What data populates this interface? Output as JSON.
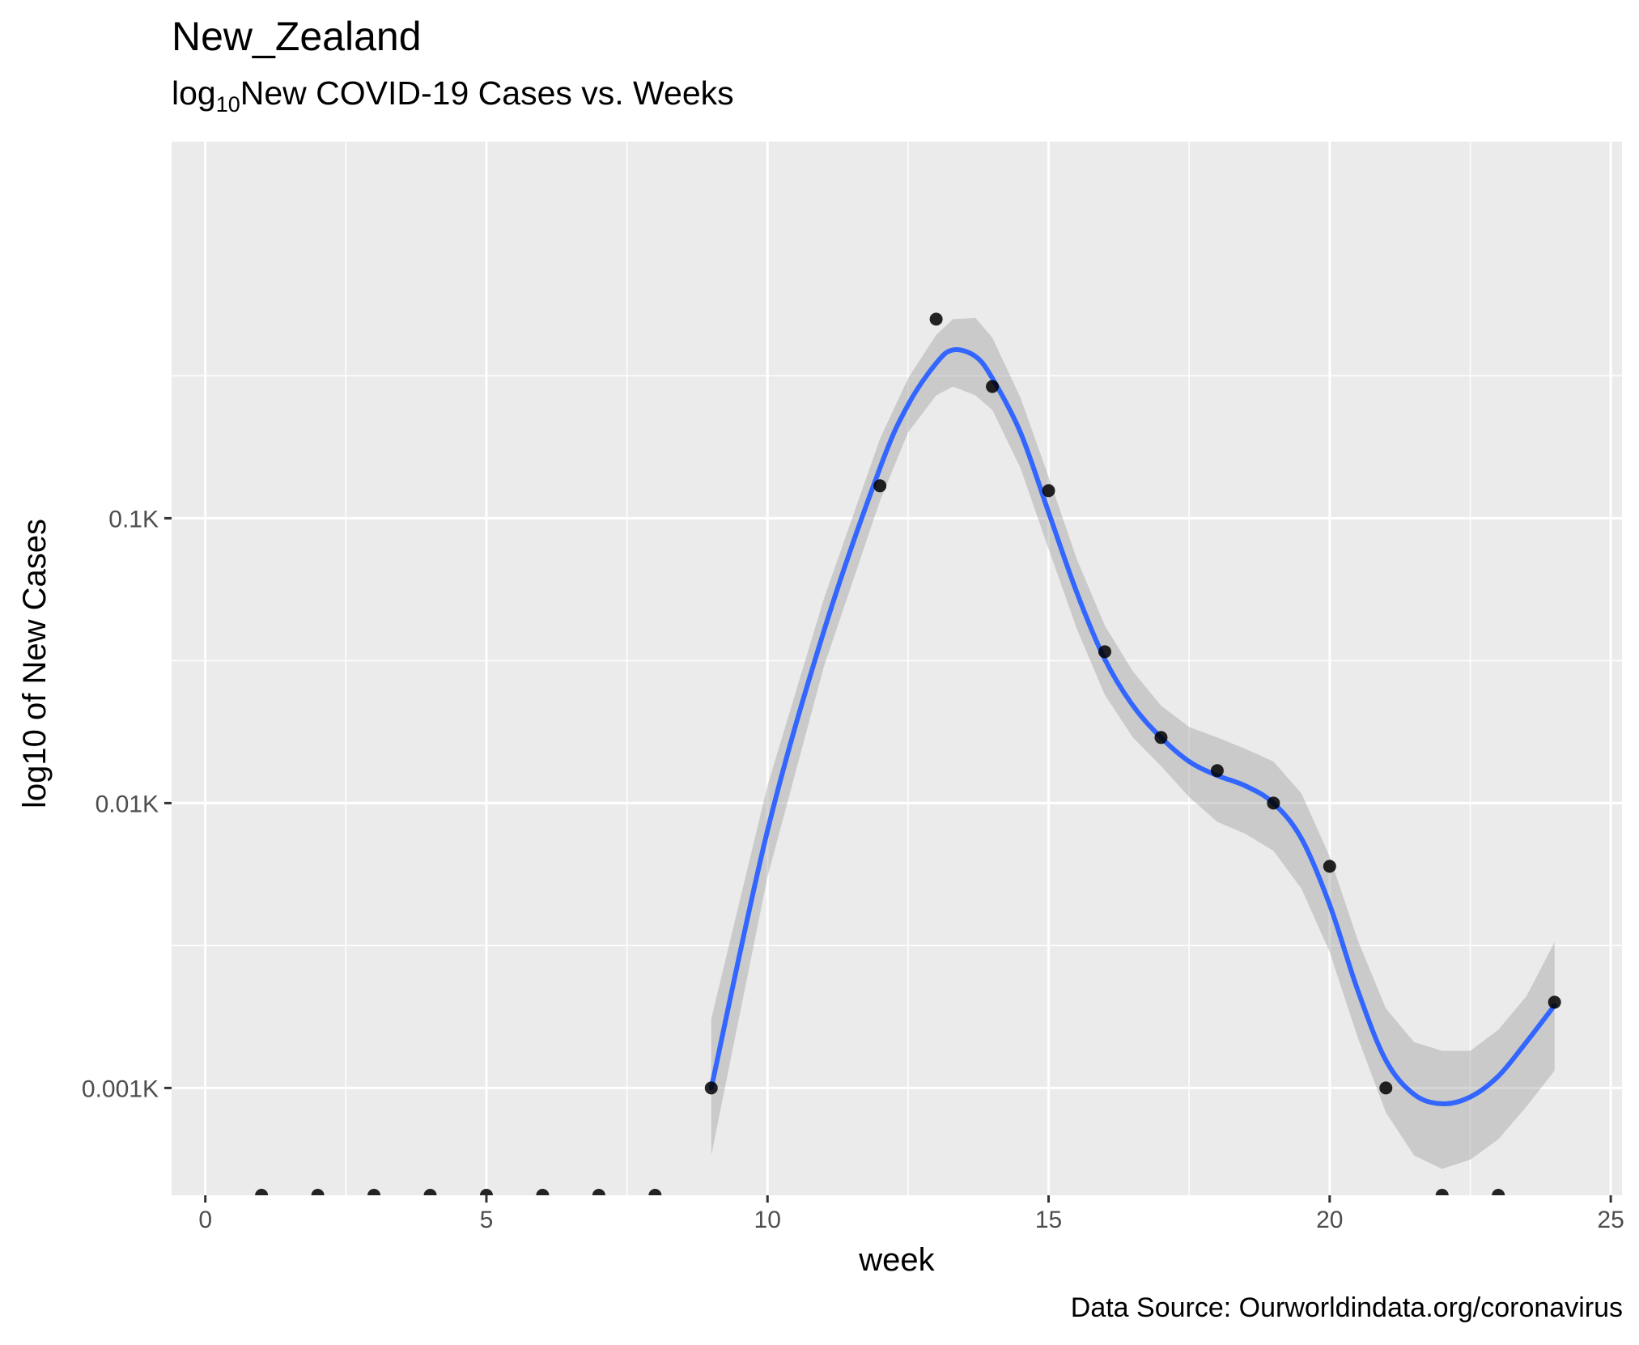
{
  "chart_data": {
    "type": "scatter",
    "title": "New_Zealand",
    "subtitle": {
      "prefix": "log",
      "subscript": "10",
      "rest": "New COVID-19 Cases vs. Weeks"
    },
    "xlabel": "week",
    "ylabel": "log10 of New Cases",
    "caption": "Data Source: Ourworldindata.org/coronavirus",
    "y_scale": "log10",
    "x_ticks": [
      0,
      5,
      10,
      15,
      20,
      25
    ],
    "x_tick_labels": [
      "0",
      "5",
      "10",
      "15",
      "20",
      "25"
    ],
    "y_ticks": [
      1,
      10,
      100
    ],
    "y_tick_labels": [
      "0.001K",
      "0.01K",
      "0.1K"
    ],
    "xlim": [
      -0.6,
      25.2
    ],
    "ylim": [
      0.42,
      2100
    ],
    "grid": true,
    "points": {
      "x": [
        1,
        2,
        3,
        4,
        5,
        6,
        7,
        8,
        9,
        12,
        13,
        14,
        15,
        16,
        17,
        18,
        19,
        20,
        21,
        22,
        23,
        24
      ],
      "y": [
        0,
        0,
        0,
        0,
        0,
        0,
        0,
        0,
        1,
        130,
        500,
        290,
        125,
        34,
        17,
        13,
        10,
        6,
        1,
        0,
        0,
        2
      ]
    },
    "smooth": {
      "name": "",
      "color": "#3366FF",
      "x": [
        9,
        10,
        11,
        12,
        12.5,
        13,
        13.3,
        13.7,
        14,
        14.5,
        15,
        15.5,
        16,
        16.5,
        17,
        17.5,
        18,
        18.5,
        19,
        19.5,
        20,
        20.5,
        21,
        21.5,
        22,
        22.5,
        23,
        23.5,
        24
      ],
      "y": [
        1,
        8,
        40,
        150,
        250,
        350,
        390,
        370,
        310,
        200,
        105,
        55,
        32,
        22,
        17,
        14,
        12.5,
        11.5,
        10,
        7.5,
        4.4,
        2.2,
        1.25,
        0.95,
        0.88,
        0.93,
        1.1,
        1.45,
        1.95
      ],
      "se_low": [
        0.58,
        5.5,
        30,
        115,
        200,
        270,
        290,
        270,
        240,
        150,
        78,
        41,
        24,
        17,
        13.5,
        10.5,
        8.6,
        7.8,
        6.8,
        5.0,
        3.0,
        1.5,
        0.82,
        0.58,
        0.52,
        0.56,
        0.66,
        0.86,
        1.15
      ],
      "se_high": [
        1.75,
        11.5,
        52,
        190,
        310,
        440,
        500,
        505,
        430,
        265,
        140,
        72,
        42,
        29,
        22,
        18.5,
        17,
        15.5,
        14,
        10.8,
        6.5,
        3.3,
        1.9,
        1.45,
        1.35,
        1.35,
        1.6,
        2.1,
        3.25
      ]
    },
    "colors": {
      "panel": "#EBEBEB",
      "grid": "#FFFFFF",
      "point": "#000000",
      "ribbon": "#999999"
    }
  }
}
